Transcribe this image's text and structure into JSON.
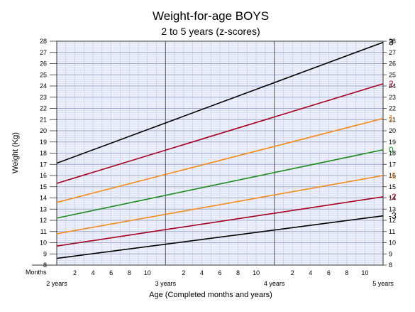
{
  "chart_data": {
    "type": "line",
    "title": "Weight-for-age  BOYS",
    "subtitle": "2 to 5 years (z-scores)",
    "xlabel": "Age (Completed months and years)",
    "ylabel": "Weight (Kg)",
    "x_unit_prefix": "Months",
    "xlim": [
      24,
      60
    ],
    "ylim": [
      8,
      28
    ],
    "y_ticks": [
      8,
      9,
      10,
      11,
      12,
      13,
      14,
      15,
      16,
      17,
      18,
      19,
      20,
      21,
      22,
      23,
      24,
      25,
      26,
      27,
      28
    ],
    "x_month_ticks": [
      {
        "x": 26,
        "label": "2"
      },
      {
        "x": 28,
        "label": "4"
      },
      {
        "x": 30,
        "label": "6"
      },
      {
        "x": 32,
        "label": "8"
      },
      {
        "x": 34,
        "label": "10"
      },
      {
        "x": 38,
        "label": "2"
      },
      {
        "x": 40,
        "label": "4"
      },
      {
        "x": 42,
        "label": "6"
      },
      {
        "x": 44,
        "label": "8"
      },
      {
        "x": 46,
        "label": "10"
      },
      {
        "x": 50,
        "label": "2"
      },
      {
        "x": 52,
        "label": "4"
      },
      {
        "x": 54,
        "label": "6"
      },
      {
        "x": 56,
        "label": "8"
      },
      {
        "x": 58,
        "label": "10"
      }
    ],
    "x_year_ticks": [
      {
        "x": 24,
        "label": "2 years"
      },
      {
        "x": 36,
        "label": "3 years"
      },
      {
        "x": 48,
        "label": "4 years"
      },
      {
        "x": 60,
        "label": "5 years"
      }
    ],
    "grid": true,
    "series": [
      {
        "name": "3",
        "color": "#000000",
        "x": [
          24,
          60
        ],
        "y": [
          17.1,
          27.9
        ]
      },
      {
        "name": "2",
        "color": "#a50021",
        "x": [
          24,
          60
        ],
        "y": [
          15.3,
          24.2
        ]
      },
      {
        "name": "1",
        "color": "#f28c1e",
        "x": [
          24,
          60
        ],
        "y": [
          13.6,
          21.1
        ]
      },
      {
        "name": "0",
        "color": "#1e8a1e",
        "x": [
          24,
          60
        ],
        "y": [
          12.2,
          18.3
        ]
      },
      {
        "name": "-1",
        "color": "#f28c1e",
        "x": [
          24,
          60
        ],
        "y": [
          10.8,
          16.0
        ]
      },
      {
        "name": "-2",
        "color": "#a50021",
        "x": [
          24,
          60
        ],
        "y": [
          9.7,
          14.1
        ]
      },
      {
        "name": "-3",
        "color": "#000000",
        "x": [
          24,
          60
        ],
        "y": [
          8.6,
          12.4
        ]
      }
    ]
  }
}
